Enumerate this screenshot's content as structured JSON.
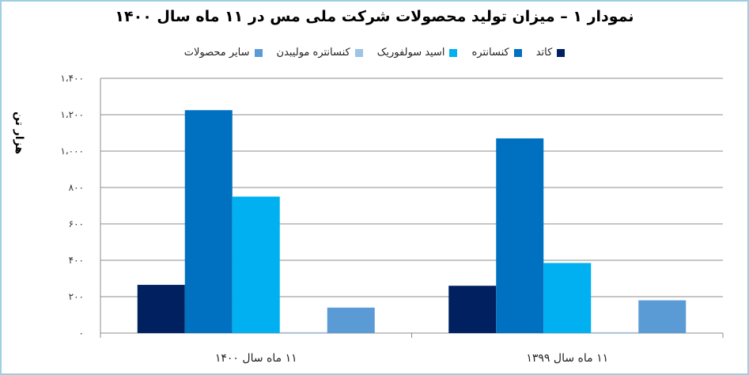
{
  "chart_data": {
    "type": "bar",
    "title": "نمودار ۱ – میزان تولید محصولات شرکت ملی مس در ۱۱ ماه سال ۱۴۰۰",
    "ylabel": "هزار تن",
    "xlabel": "",
    "categories": [
      "۱۱ ماه سال ۱۴۰۰",
      "۱۱ ماه سال ۱۳۹۹"
    ],
    "ylim": [
      0,
      1400
    ],
    "yticks": [
      0,
      200,
      400,
      600,
      800,
      1000,
      1200,
      1400
    ],
    "ytick_labels": [
      "۰",
      "۲۰۰",
      "۴۰۰",
      "۶۰۰",
      "۸۰۰",
      "۱،۰۰۰",
      "۱،۲۰۰",
      "۱،۴۰۰"
    ],
    "grid": true,
    "legend_position": "top",
    "series": [
      {
        "name": "کاتد",
        "color": "#002060",
        "values": [
          265,
          260
        ]
      },
      {
        "name": "کنسانتره",
        "color": "#0070c0",
        "values": [
          1225,
          1070
        ]
      },
      {
        "name": "اسید سولفوریک",
        "color": "#00b0f0",
        "values": [
          750,
          385
        ]
      },
      {
        "name": "کنسانتره مولیبدن",
        "color": "#9dc3e6",
        "values": [
          5,
          5
        ]
      },
      {
        "name": "سایر محصولات",
        "color": "#5b9bd5",
        "values": [
          140,
          180
        ]
      }
    ]
  }
}
